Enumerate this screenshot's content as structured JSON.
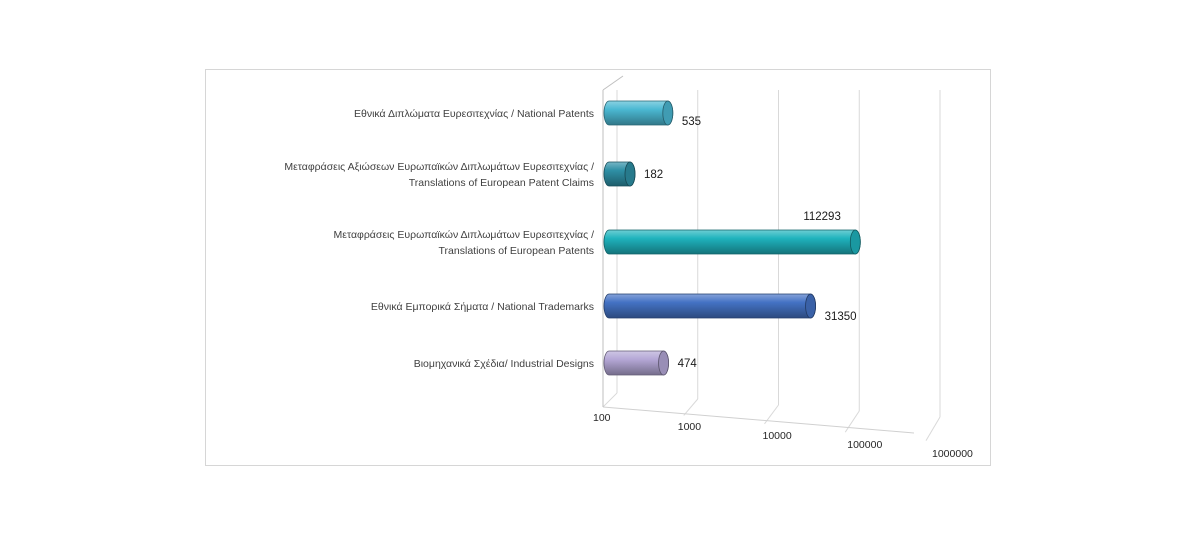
{
  "chart_data": {
    "type": "bar",
    "orientation": "horizontal",
    "style": "3d-cylinder",
    "scale": "log",
    "xlim": [
      100,
      1000000
    ],
    "ticks": [
      "100",
      "1000",
      "10000",
      "100000",
      "1000000"
    ],
    "grid": true,
    "legend": "none",
    "categories": [
      [
        "Εθνικά Διπλώματα Ευρεσιτεχνίας / National Patents"
      ],
      [
        "Μεταφράσεις Αξιώσεων Ευρωπαϊκών Διπλωμάτων Ευρεσιτεχνίας /",
        "Translations of European Patent Claims"
      ],
      [
        "Μεταφράσεις Ευρωπαϊκών Διπλωμάτων Ευρεσιτεχνίας /",
        "Translations of European Patents"
      ],
      [
        "Εθνικά Εμπορικά Σήματα / National Trademarks"
      ],
      [
        "Βιομηχανικά Σχέδια/ Industrial Designs"
      ]
    ],
    "values": [
      535,
      182,
      112293,
      31350,
      474
    ],
    "value_labels": [
      "535",
      "182",
      "112293",
      "31350",
      "474"
    ],
    "colors": [
      "#4bb8d2",
      "#2e8fa5",
      "#1fb3bd",
      "#4472c4",
      "#b4a7d6"
    ]
  }
}
